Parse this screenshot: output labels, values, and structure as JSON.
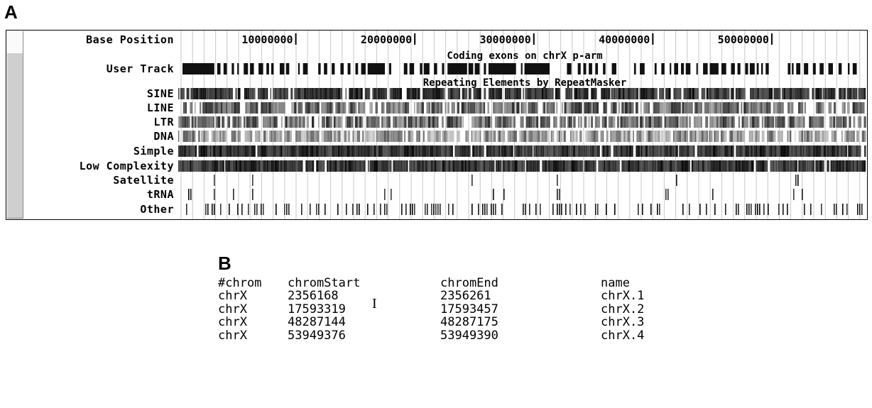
{
  "panel_a": {
    "letter": "A",
    "base_position_label": "Base Position",
    "position_ticks": [
      "10000000",
      "20000000",
      "30000000",
      "40000000",
      "50000000"
    ],
    "position_tick_values": [
      10000000,
      20000000,
      30000000,
      40000000,
      50000000
    ],
    "view_range": [
      0,
      58000000
    ],
    "user_track_label": "User Track",
    "user_track_title": "Coding exons on chrX p-arm",
    "repeat_group_title": "Repeating Elements by RepeatMasker",
    "repeat_tracks": [
      {
        "label": "SINE",
        "density": 0.85,
        "shade": "dark"
      },
      {
        "label": "LINE",
        "density": 0.8,
        "shade": "mid"
      },
      {
        "label": "LTR",
        "density": 0.8,
        "shade": "mid"
      },
      {
        "label": "DNA",
        "density": 0.75,
        "shade": "light"
      },
      {
        "label": "Simple",
        "density": 0.95,
        "shade": "dark"
      },
      {
        "label": "Low Complexity",
        "density": 0.95,
        "shade": "dark"
      },
      {
        "label": "Satellite",
        "density": 0.02,
        "shade": "sparse"
      },
      {
        "label": "tRNA",
        "density": 0.06,
        "shade": "sparse"
      },
      {
        "label": "Other",
        "density": 0.35,
        "shade": "sparse"
      }
    ]
  },
  "panel_b": {
    "letter": "B",
    "headers": [
      "#chrom",
      "chromStart",
      "chromEnd",
      "name"
    ],
    "rows": [
      [
        "chrX",
        "2356168",
        "2356261",
        "chrX.1"
      ],
      [
        "chrX",
        "17593319",
        "17593457",
        "chrX.2"
      ],
      [
        "chrX",
        "48287144",
        "48287175",
        "chrX.3"
      ],
      [
        "chrX",
        "53949376",
        "53949390",
        "chrX.4"
      ]
    ]
  }
}
